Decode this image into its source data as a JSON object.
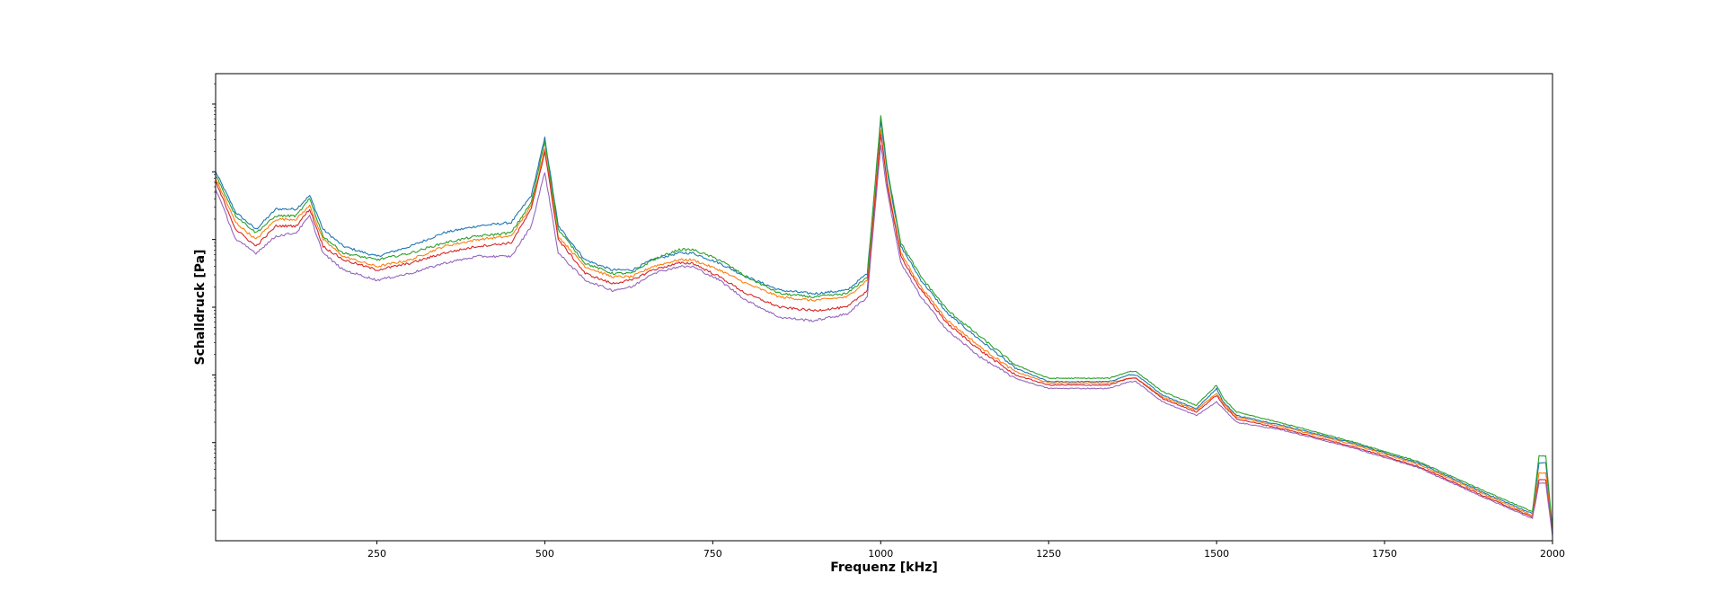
{
  "chart_data": {
    "type": "line",
    "title": "",
    "xlabel": "Frequenz [kHz]",
    "ylabel": "Schalldruck [Pa]",
    "xlim": [
      10,
      2000
    ],
    "y_scale": "log",
    "ylim_log10": [
      -6.45,
      0.45
    ],
    "x_ticks": [
      250,
      500,
      750,
      1000,
      1250,
      1500,
      1750,
      2000
    ],
    "x_tick_labels": [
      "250",
      "500",
      "750",
      "1000",
      "1250",
      "1500",
      "1750",
      "2000"
    ],
    "y_tick_labels_visible": false,
    "grid": false,
    "legend": "none",
    "colors": [
      "#1f77b4",
      "#ff7f0e",
      "#2ca02c",
      "#d62728",
      "#9467bd"
    ],
    "series_note_log10_values": true,
    "x": [
      10,
      40,
      70,
      100,
      130,
      150,
      170,
      200,
      250,
      300,
      350,
      400,
      450,
      480,
      500,
      520,
      560,
      600,
      630,
      660,
      700,
      720,
      760,
      800,
      850,
      900,
      950,
      980,
      1000,
      1010,
      1030,
      1060,
      1100,
      1150,
      1200,
      1250,
      1300,
      1340,
      1370,
      1380,
      1420,
      1470,
      1500,
      1510,
      1530,
      1600,
      1700,
      1800,
      1900,
      1970,
      1980,
      1990,
      2000
    ],
    "series": [
      {
        "values": [
          -1.0,
          -1.6,
          -1.85,
          -1.55,
          -1.55,
          -1.35,
          -1.85,
          -2.1,
          -2.25,
          -2.1,
          -1.9,
          -1.8,
          -1.75,
          -1.35,
          -0.5,
          -1.8,
          -2.3,
          -2.45,
          -2.45,
          -2.3,
          -2.2,
          -2.2,
          -2.35,
          -2.55,
          -2.75,
          -2.8,
          -2.75,
          -2.5,
          -0.25,
          -1.0,
          -2.1,
          -2.6,
          -3.1,
          -3.5,
          -3.9,
          -4.1,
          -4.1,
          -4.1,
          -4.0,
          -4.0,
          -4.3,
          -4.5,
          -4.2,
          -4.4,
          -4.6,
          -4.75,
          -5.0,
          -5.3,
          -5.75,
          -6.05,
          -5.3,
          -5.3,
          -6.3
        ]
      },
      {
        "values": [
          -1.1,
          -1.75,
          -2.0,
          -1.7,
          -1.7,
          -1.5,
          -2.0,
          -2.25,
          -2.4,
          -2.3,
          -2.1,
          -2.0,
          -1.95,
          -1.5,
          -0.65,
          -1.95,
          -2.4,
          -2.55,
          -2.55,
          -2.4,
          -2.3,
          -2.3,
          -2.45,
          -2.65,
          -2.85,
          -2.9,
          -2.85,
          -2.6,
          -0.4,
          -1.15,
          -2.2,
          -2.7,
          -3.2,
          -3.6,
          -3.95,
          -4.12,
          -4.12,
          -4.12,
          -4.05,
          -4.05,
          -4.33,
          -4.52,
          -4.27,
          -4.42,
          -4.62,
          -4.77,
          -5.02,
          -5.32,
          -5.77,
          -6.08,
          -5.45,
          -5.45,
          -6.33
        ]
      },
      {
        "values": [
          -1.05,
          -1.65,
          -1.9,
          -1.65,
          -1.65,
          -1.4,
          -1.95,
          -2.2,
          -2.3,
          -2.2,
          -2.05,
          -1.95,
          -1.9,
          -1.45,
          -0.55,
          -1.85,
          -2.35,
          -2.5,
          -2.5,
          -2.3,
          -2.15,
          -2.15,
          -2.3,
          -2.55,
          -2.8,
          -2.85,
          -2.8,
          -2.55,
          -0.18,
          -0.95,
          -2.05,
          -2.55,
          -3.05,
          -3.45,
          -3.85,
          -4.05,
          -4.05,
          -4.05,
          -3.95,
          -3.95,
          -4.25,
          -4.45,
          -4.15,
          -4.35,
          -4.55,
          -4.72,
          -4.98,
          -5.28,
          -5.72,
          -6.02,
          -5.2,
          -5.2,
          -6.28
        ]
      },
      {
        "values": [
          -1.15,
          -1.85,
          -2.1,
          -1.8,
          -1.8,
          -1.55,
          -2.1,
          -2.3,
          -2.45,
          -2.35,
          -2.2,
          -2.1,
          -2.05,
          -1.55,
          -0.7,
          -2.0,
          -2.5,
          -2.65,
          -2.6,
          -2.45,
          -2.35,
          -2.35,
          -2.55,
          -2.8,
          -3.0,
          -3.05,
          -3.0,
          -2.75,
          -0.45,
          -1.2,
          -2.25,
          -2.75,
          -3.25,
          -3.65,
          -4.0,
          -4.15,
          -4.15,
          -4.15,
          -4.05,
          -4.05,
          -4.35,
          -4.55,
          -4.3,
          -4.45,
          -4.65,
          -4.8,
          -5.05,
          -5.35,
          -5.8,
          -6.1,
          -5.55,
          -5.55,
          -6.35
        ]
      },
      {
        "values": [
          -1.25,
          -2.0,
          -2.2,
          -1.95,
          -1.9,
          -1.65,
          -2.2,
          -2.45,
          -2.6,
          -2.5,
          -2.35,
          -2.25,
          -2.25,
          -1.8,
          -1.0,
          -2.2,
          -2.6,
          -2.75,
          -2.7,
          -2.5,
          -2.4,
          -2.4,
          -2.6,
          -2.9,
          -3.15,
          -3.2,
          -3.1,
          -2.85,
          -0.6,
          -1.3,
          -2.35,
          -2.85,
          -3.35,
          -3.75,
          -4.05,
          -4.2,
          -4.2,
          -4.2,
          -4.1,
          -4.1,
          -4.4,
          -4.6,
          -4.4,
          -4.5,
          -4.7,
          -4.82,
          -5.07,
          -5.37,
          -5.82,
          -6.12,
          -5.6,
          -5.6,
          -6.38
        ]
      }
    ]
  }
}
